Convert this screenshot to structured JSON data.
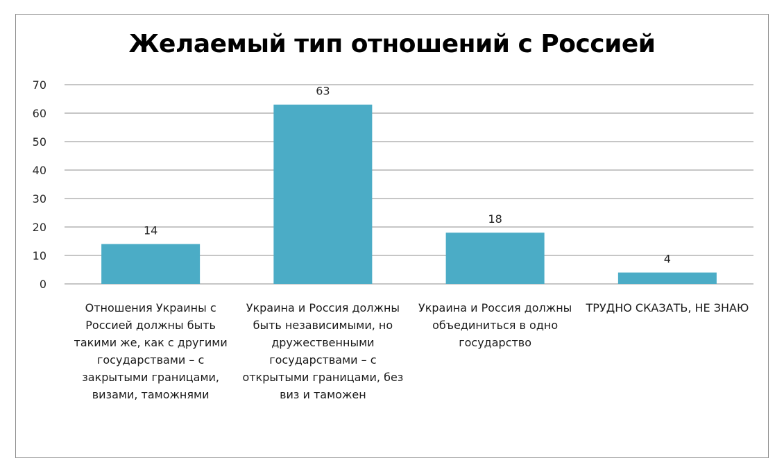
{
  "chart_data": {
    "type": "bar",
    "title": "Желаемый тип отношений с Россией",
    "xlabel": "",
    "ylabel": "",
    "ylim": [
      0,
      70
    ],
    "yticks": [
      0,
      10,
      20,
      30,
      40,
      50,
      60,
      70
    ],
    "grid": true,
    "legend": "none",
    "bar_color": "#4bacc6",
    "categories": [
      "Отношения Украины с Россией должны быть такими же, как с другими государствами – с закрытыми границами, визами, таможнями",
      "Украина и Россия должны быть независимыми, но дружественными государствами – с открытыми границами, без виз и таможен",
      "Украина и Россия должны объединиться в одно государство",
      "ТРУДНО СКАЗАТЬ, НЕ ЗНАЮ"
    ],
    "values": [
      14,
      63,
      18,
      4
    ]
  }
}
